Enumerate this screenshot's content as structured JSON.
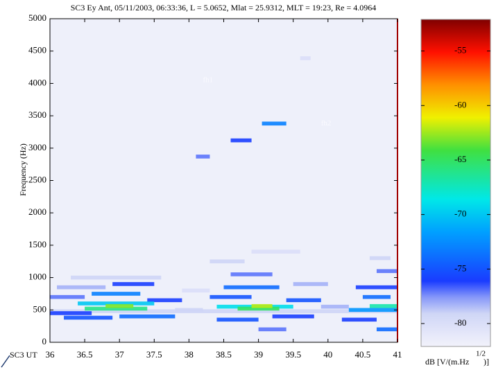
{
  "chart_data": {
    "type": "spectrogram",
    "title": "SC3 Ey Ant, 05/11/2003, 06:33:36, L = 5.0652, Mlat = 25.9312, MLT = 19:23, Re = 4.0964",
    "ylabel": "Frequency (Hz)",
    "xlabel": "SC3 UT",
    "xlim": [
      36,
      41
    ],
    "xticks": [
      36,
      36.5,
      37,
      37.5,
      38,
      38.5,
      39,
      39.5,
      40,
      40.5,
      41
    ],
    "ylim": [
      0,
      5000
    ],
    "yticks": [
      0,
      500,
      1000,
      1500,
      2000,
      2500,
      3000,
      3500,
      4000,
      4500,
      5000
    ],
    "colorbar": {
      "clim": [
        -82.1,
        -52.1
      ],
      "ticks": [
        -55,
        -60,
        -65,
        -70,
        -75,
        -80
      ],
      "label": "dB [V/(m.Hz",
      "label_superscript": "1/2",
      "label_end": ")]"
    },
    "annotations": [
      {
        "text": "fh1",
        "x": 38.2,
        "y": 4050
      },
      {
        "text": "fh2",
        "x": 39.9,
        "y": 3380
      }
    ],
    "cells": [
      [
        36.0,
        41.0,
        480,
        -79
      ],
      [
        36.0,
        36.6,
        450,
        -76
      ],
      [
        36.0,
        36.5,
        700,
        -77
      ],
      [
        36.1,
        36.8,
        850,
        -78
      ],
      [
        36.3,
        37.6,
        1000,
        -79
      ],
      [
        36.2,
        36.9,
        380,
        -75
      ],
      [
        37.0,
        37.8,
        400,
        -74
      ],
      [
        37.4,
        37.9,
        650,
        -76
      ],
      [
        36.9,
        37.5,
        900,
        -76
      ],
      [
        37.8,
        38.2,
        500,
        -79
      ],
      [
        37.9,
        38.3,
        800,
        -80
      ],
      [
        36.6,
        37.3,
        750,
        -73
      ],
      [
        36.4,
        37.5,
        600,
        -70
      ],
      [
        36.5,
        37.4,
        520,
        -66
      ],
      [
        36.8,
        37.2,
        560,
        -63
      ],
      [
        38.3,
        38.9,
        700,
        -75
      ],
      [
        38.5,
        39.3,
        850,
        -74
      ],
      [
        38.6,
        39.2,
        1050,
        -77
      ],
      [
        38.3,
        38.8,
        1250,
        -79
      ],
      [
        38.4,
        39.0,
        350,
        -75
      ],
      [
        39.2,
        39.8,
        400,
        -76
      ],
      [
        39.4,
        39.9,
        650,
        -75
      ],
      [
        39.5,
        40.0,
        900,
        -78
      ],
      [
        39.9,
        40.3,
        550,
        -78
      ],
      [
        38.9,
        39.6,
        1400,
        -80
      ],
      [
        39.0,
        39.4,
        200,
        -77
      ],
      [
        38.4,
        39.5,
        550,
        -69
      ],
      [
        38.7,
        39.3,
        520,
        -65
      ],
      [
        38.9,
        39.2,
        560,
        -62
      ],
      [
        40.2,
        40.7,
        350,
        -76
      ],
      [
        40.4,
        41.0,
        850,
        -76
      ],
      [
        40.7,
        41.0,
        1100,
        -77
      ],
      [
        40.6,
        40.9,
        1300,
        -79
      ],
      [
        40.7,
        41.0,
        200,
        -74
      ],
      [
        40.5,
        40.9,
        700,
        -74
      ],
      [
        40.3,
        41.0,
        500,
        -72
      ],
      [
        40.6,
        41.0,
        560,
        -67
      ],
      [
        38.1,
        38.3,
        2870,
        -77
      ],
      [
        38.6,
        38.9,
        3120,
        -76
      ],
      [
        39.05,
        39.4,
        3380,
        -73
      ],
      [
        39.6,
        39.75,
        4390,
        -80
      ]
    ]
  }
}
